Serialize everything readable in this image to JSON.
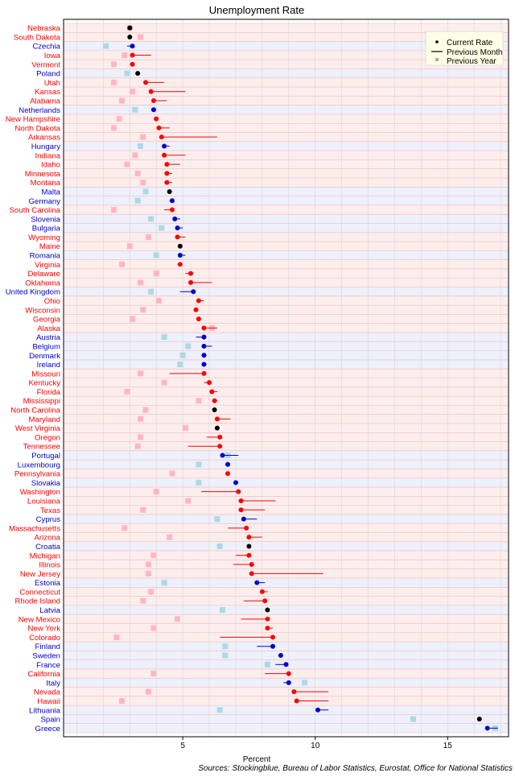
{
  "chart_data": {
    "type": "dot-range",
    "title": "Unemployment Rate",
    "xlabel": "Percent",
    "xlim": [
      0.5,
      17.3
    ],
    "x_ticks": [
      5,
      10,
      15
    ],
    "grid": true,
    "legend": {
      "placement": "top-right",
      "entries": [
        "Current Rate",
        "Previous Month",
        "Previous Year"
      ]
    },
    "source": "Sources: Stockingblue, Bureau of Labor Statistics, Eurostat, Office for National Statistics",
    "colors": {
      "us_state": "#ff0000",
      "european_country": "#0000cc",
      "unchanged": "#000000",
      "previous_year_us": "#ffb6c1",
      "previous_year_eu": "#add8e6",
      "row_us": "#fdeeee",
      "row_eu": "#eef0fb"
    },
    "rows": [
      {
        "name": "Nebraska",
        "region": "us",
        "current": 3.0,
        "prev_month": 3.0,
        "prev_year": 3.0
      },
      {
        "name": "South Dakota",
        "region": "us",
        "current": 3.0,
        "prev_month": 3.0,
        "prev_year": 3.4
      },
      {
        "name": "Czechia",
        "region": "eu",
        "current": 3.1,
        "prev_month": 2.9,
        "prev_year": 2.1
      },
      {
        "name": "Iowa",
        "region": "us",
        "current": 3.1,
        "prev_month": 3.8,
        "prev_year": 2.8
      },
      {
        "name": "Vermont",
        "region": "us",
        "current": 3.1,
        "prev_month": 3.0,
        "prev_year": 2.4
      },
      {
        "name": "Poland",
        "region": "eu",
        "current": 3.3,
        "prev_month": 3.3,
        "prev_year": 2.9
      },
      {
        "name": "Utah",
        "region": "us",
        "current": 3.6,
        "prev_month": 4.3,
        "prev_year": 2.4
      },
      {
        "name": "Kansas",
        "region": "us",
        "current": 3.8,
        "prev_month": 5.1,
        "prev_year": 3.1
      },
      {
        "name": "Alabama",
        "region": "us",
        "current": 3.9,
        "prev_month": 4.4,
        "prev_year": 2.7
      },
      {
        "name": "Netherlands",
        "region": "eu",
        "current": 3.9,
        "prev_month": 4.0,
        "prev_year": 3.2
      },
      {
        "name": "New Hampshire",
        "region": "us",
        "current": 4.0,
        "prev_month": 3.9,
        "prev_year": 2.6
      },
      {
        "name": "North Dakota",
        "region": "us",
        "current": 4.1,
        "prev_month": 4.5,
        "prev_year": 2.4
      },
      {
        "name": "Arkansas",
        "region": "us",
        "current": 4.2,
        "prev_month": 6.3,
        "prev_year": 3.5
      },
      {
        "name": "Hungary",
        "region": "eu",
        "current": 4.3,
        "prev_month": 4.5,
        "prev_year": 3.4
      },
      {
        "name": "Indiana",
        "region": "us",
        "current": 4.3,
        "prev_month": 5.1,
        "prev_year": 3.2
      },
      {
        "name": "Idaho",
        "region": "us",
        "current": 4.4,
        "prev_month": 4.9,
        "prev_year": 2.9
      },
      {
        "name": "Minnesota",
        "region": "us",
        "current": 4.4,
        "prev_month": 4.6,
        "prev_year": 3.3
      },
      {
        "name": "Montana",
        "region": "us",
        "current": 4.4,
        "prev_month": 4.6,
        "prev_year": 3.5
      },
      {
        "name": "Malta",
        "region": "eu",
        "current": 4.5,
        "prev_month": 4.5,
        "prev_year": 3.6
      },
      {
        "name": "Germany",
        "region": "eu",
        "current": 4.6,
        "prev_month": 4.5,
        "prev_year": 3.3
      },
      {
        "name": "South Carolina",
        "region": "us",
        "current": 4.6,
        "prev_month": 4.3,
        "prev_year": 2.4
      },
      {
        "name": "Slovenia",
        "region": "eu",
        "current": 4.7,
        "prev_month": 4.9,
        "prev_year": 3.8
      },
      {
        "name": "Bulgaria",
        "region": "eu",
        "current": 4.8,
        "prev_month": 5.0,
        "prev_year": 4.2
      },
      {
        "name": "Wyoming",
        "region": "us",
        "current": 4.8,
        "prev_month": 5.1,
        "prev_year": 3.7
      },
      {
        "name": "Maine",
        "region": "us",
        "current": 4.9,
        "prev_month": 4.9,
        "prev_year": 3.0
      },
      {
        "name": "Romania",
        "region": "eu",
        "current": 4.9,
        "prev_month": 5.1,
        "prev_year": 4.0
      },
      {
        "name": "Virginia",
        "region": "us",
        "current": 4.9,
        "prev_month": 4.8,
        "prev_year": 2.7
      },
      {
        "name": "Delaware",
        "region": "us",
        "current": 5.3,
        "prev_month": 5.1,
        "prev_year": 4.0
      },
      {
        "name": "Oklahoma",
        "region": "us",
        "current": 5.3,
        "prev_month": 6.1,
        "prev_year": 3.4
      },
      {
        "name": "United Kingdom",
        "region": "eu",
        "current": 5.4,
        "prev_month": 4.9,
        "prev_year": 3.8
      },
      {
        "name": "Ohio",
        "region": "us",
        "current": 5.6,
        "prev_month": 5.8,
        "prev_year": 4.1
      },
      {
        "name": "Wisconsin",
        "region": "us",
        "current": 5.5,
        "prev_month": 5.4,
        "prev_year": 3.5
      },
      {
        "name": "Georgia",
        "region": "us",
        "current": 5.6,
        "prev_month": 5.7,
        "prev_year": 3.1
      },
      {
        "name": "Alaska",
        "region": "us",
        "current": 5.8,
        "prev_month": 6.3,
        "prev_year": 6.1
      },
      {
        "name": "Austria",
        "region": "eu",
        "current": 5.8,
        "prev_month": 5.5,
        "prev_year": 4.3
      },
      {
        "name": "Belgium",
        "region": "eu",
        "current": 5.8,
        "prev_month": 6.1,
        "prev_year": 5.2
      },
      {
        "name": "Denmark",
        "region": "eu",
        "current": 5.8,
        "prev_month": 5.9,
        "prev_year": 5.0
      },
      {
        "name": "Ireland",
        "region": "eu",
        "current": 5.8,
        "prev_month": 5.9,
        "prev_year": 4.9
      },
      {
        "name": "Missouri",
        "region": "us",
        "current": 5.8,
        "prev_month": 4.5,
        "prev_year": 3.4
      },
      {
        "name": "Kentucky",
        "region": "us",
        "current": 6.0,
        "prev_month": 5.8,
        "prev_year": 4.3
      },
      {
        "name": "Florida",
        "region": "us",
        "current": 6.1,
        "prev_month": 6.3,
        "prev_year": 2.9
      },
      {
        "name": "Mississippi",
        "region": "us",
        "current": 6.2,
        "prev_month": 6.3,
        "prev_year": 5.6
      },
      {
        "name": "North Carolina",
        "region": "us",
        "current": 6.2,
        "prev_month": 6.2,
        "prev_year": 3.6
      },
      {
        "name": "Maryland",
        "region": "us",
        "current": 6.3,
        "prev_month": 6.8,
        "prev_year": 3.4
      },
      {
        "name": "West Virginia",
        "region": "us",
        "current": 6.3,
        "prev_month": 6.3,
        "prev_year": 5.1
      },
      {
        "name": "Oregon",
        "region": "us",
        "current": 6.4,
        "prev_month": 5.9,
        "prev_year": 3.4
      },
      {
        "name": "Tennessee",
        "region": "us",
        "current": 6.4,
        "prev_month": 5.2,
        "prev_year": 3.3
      },
      {
        "name": "Portugal",
        "region": "eu",
        "current": 6.5,
        "prev_month": 7.1,
        "prev_year": 6.7
      },
      {
        "name": "Luxembourg",
        "region": "eu",
        "current": 6.7,
        "prev_month": 6.6,
        "prev_year": 5.6
      },
      {
        "name": "Pennsylvania",
        "region": "us",
        "current": 6.7,
        "prev_month": 6.6,
        "prev_year": 4.6
      },
      {
        "name": "Slovakia",
        "region": "eu",
        "current": 7.0,
        "prev_month": 7.1,
        "prev_year": 5.6
      },
      {
        "name": "Washington",
        "region": "us",
        "current": 7.1,
        "prev_month": 5.7,
        "prev_year": 4.0
      },
      {
        "name": "Louisiana",
        "region": "us",
        "current": 7.2,
        "prev_month": 8.5,
        "prev_year": 5.2
      },
      {
        "name": "Texas",
        "region": "us",
        "current": 7.2,
        "prev_month": 8.1,
        "prev_year": 3.5
      },
      {
        "name": "Cyprus",
        "region": "eu",
        "current": 7.3,
        "prev_month": 7.8,
        "prev_year": 6.3
      },
      {
        "name": "Massachusetts",
        "region": "us",
        "current": 7.4,
        "prev_month": 6.7,
        "prev_year": 2.8
      },
      {
        "name": "Arizona",
        "region": "us",
        "current": 7.5,
        "prev_month": 8.0,
        "prev_year": 4.5
      },
      {
        "name": "Croatia",
        "region": "eu",
        "current": 7.5,
        "prev_month": 7.5,
        "prev_year": 6.4
      },
      {
        "name": "Michigan",
        "region": "us",
        "current": 7.5,
        "prev_month": 7.0,
        "prev_year": 3.9
      },
      {
        "name": "Illinois",
        "region": "us",
        "current": 7.6,
        "prev_month": 6.9,
        "prev_year": 3.7
      },
      {
        "name": "New Jersey",
        "region": "us",
        "current": 7.6,
        "prev_month": 10.3,
        "prev_year": 3.7
      },
      {
        "name": "Estonia",
        "region": "eu",
        "current": 7.8,
        "prev_month": 8.1,
        "prev_year": 4.3
      },
      {
        "name": "Connecticut",
        "region": "us",
        "current": 8.0,
        "prev_month": 8.2,
        "prev_year": 3.8
      },
      {
        "name": "Rhode Island",
        "region": "us",
        "current": 8.1,
        "prev_month": 7.3,
        "prev_year": 3.5
      },
      {
        "name": "Latvia",
        "region": "eu",
        "current": 8.2,
        "prev_month": 8.2,
        "prev_year": 6.5
      },
      {
        "name": "New Mexico",
        "region": "us",
        "current": 8.2,
        "prev_month": 7.2,
        "prev_year": 4.8
      },
      {
        "name": "New York",
        "region": "us",
        "current": 8.2,
        "prev_month": 8.4,
        "prev_year": 3.9
      },
      {
        "name": "Colorado",
        "region": "us",
        "current": 8.4,
        "prev_month": 6.4,
        "prev_year": 2.5
      },
      {
        "name": "Finland",
        "region": "eu",
        "current": 8.4,
        "prev_month": 7.8,
        "prev_year": 6.6
      },
      {
        "name": "Sweden",
        "region": "eu",
        "current": 8.7,
        "prev_month": 8.6,
        "prev_year": 6.6
      },
      {
        "name": "France",
        "region": "eu",
        "current": 8.9,
        "prev_month": 8.5,
        "prev_year": 8.2
      },
      {
        "name": "California",
        "region": "us",
        "current": 9.0,
        "prev_month": 8.1,
        "prev_year": 3.9
      },
      {
        "name": "Italy",
        "region": "eu",
        "current": 9.0,
        "prev_month": 8.8,
        "prev_year": 9.6
      },
      {
        "name": "Nevada",
        "region": "us",
        "current": 9.2,
        "prev_month": 10.5,
        "prev_year": 3.7
      },
      {
        "name": "Hawaii",
        "region": "us",
        "current": 9.3,
        "prev_month": 10.5,
        "prev_year": 2.7
      },
      {
        "name": "Lithuania",
        "region": "eu",
        "current": 10.1,
        "prev_month": 10.5,
        "prev_year": 6.4
      },
      {
        "name": "Spain",
        "region": "eu",
        "current": 16.2,
        "prev_month": 16.2,
        "prev_year": 13.7
      },
      {
        "name": "Greece",
        "region": "eu",
        "current": 16.5,
        "prev_month": 16.9,
        "prev_year": 16.8
      }
    ]
  }
}
